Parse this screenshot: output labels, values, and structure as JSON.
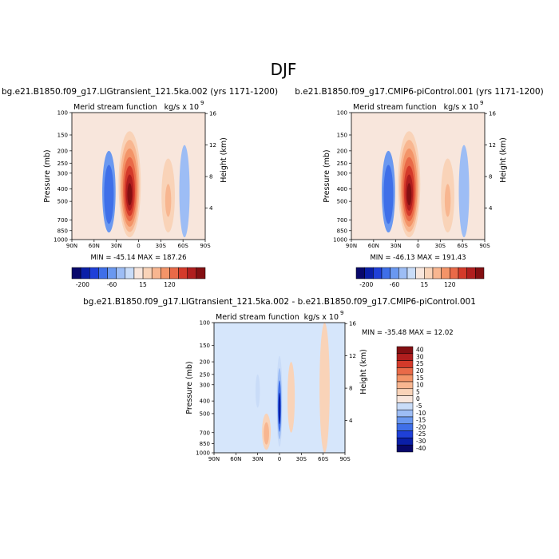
{
  "page": {
    "title": "DJF"
  },
  "colors": {
    "cmap_abs": [
      "#08086b",
      "#0a1fa8",
      "#1f40d8",
      "#3f6fe8",
      "#6a98f0",
      "#9dbdf5",
      "#c9dcf8",
      "#f8e6dc",
      "#f9d3b8",
      "#f8b690",
      "#f39468",
      "#e96a48",
      "#d43a2a",
      "#b01e1e",
      "#830f12"
    ],
    "cmap_diff": [
      "#08086b",
      "#0a1fa8",
      "#1f40d8",
      "#3f6fe8",
      "#6a98f0",
      "#9dbdf5",
      "#c9dcf8",
      "#f8e6dc",
      "#f9d3b8",
      "#f8b690",
      "#f39468",
      "#e96a48",
      "#d43a2a",
      "#b01e1e",
      "#830f12"
    ]
  },
  "chart_data": [
    {
      "type": "heatmap",
      "title": "bg.e21.B1850.f09_g17.LIGtransient_121.5ka.002 (yrs 1171-1200)",
      "subtitle_left": "Merid stream function",
      "subtitle_right": "kg/s x 10",
      "subtitle_exp": "9",
      "ylabel": "Pressure (mb)",
      "ylabel_right": "Height (km)",
      "x_ticks": [
        "90N",
        "60N",
        "30N",
        "0",
        "30S",
        "60S",
        "90S"
      ],
      "x_range": [
        90,
        -90
      ],
      "y_ticks": [
        "100",
        "150",
        "200",
        "250",
        "300",
        "400",
        "500",
        "700",
        "850",
        "1000"
      ],
      "y_tick_values": [
        100,
        150,
        200,
        250,
        300,
        400,
        500,
        700,
        850,
        1000
      ],
      "y_range": [
        100,
        1000
      ],
      "y_log": true,
      "height_ticks": [
        "16",
        "12",
        "8",
        "4"
      ],
      "height_values": [
        16,
        12,
        8,
        4
      ],
      "min_max": "MIN = -45.14   MAX = 187.26",
      "min": -45.14,
      "max": 187.26,
      "cells": [
        {
          "lat_center": 12,
          "lat_width": 30,
          "p_top": 140,
          "p_bot": 960,
          "value": 187.26,
          "levels": [
            15,
            35,
            60,
            90,
            120,
            150,
            175
          ]
        },
        {
          "lat_center": 40,
          "lat_width": 18,
          "p_top": 200,
          "p_bot": 880,
          "value": -45.14,
          "levels": [
            -15,
            -30,
            -45
          ]
        },
        {
          "lat_center": -40,
          "lat_width": 18,
          "p_top": 230,
          "p_bot": 880,
          "value": 40,
          "levels": [
            15,
            30,
            40
          ]
        },
        {
          "lat_center": -62,
          "lat_width": 14,
          "p_top": 180,
          "p_bot": 960,
          "value": -12,
          "levels": [
            -10
          ]
        },
        {
          "lat_center": 70,
          "lat_width": 26,
          "p_top": 200,
          "p_bot": 990,
          "value": 8,
          "levels": [
            5
          ]
        }
      ]
    },
    {
      "type": "heatmap",
      "title": "b.e21.B1850.f09_g17.CMIP6-piControl.001 (yrs 1171-1200)",
      "subtitle_left": "Merid stream function",
      "subtitle_right": "kg/s x 10",
      "subtitle_exp": "9",
      "ylabel": "Pressure (mb)",
      "ylabel_right": "Height (km)",
      "x_ticks": [
        "90N",
        "60N",
        "30N",
        "0",
        "30S",
        "60S",
        "90S"
      ],
      "x_range": [
        90,
        -90
      ],
      "y_ticks": [
        "100",
        "150",
        "200",
        "250",
        "300",
        "400",
        "500",
        "700",
        "850",
        "1000"
      ],
      "y_tick_values": [
        100,
        150,
        200,
        250,
        300,
        400,
        500,
        700,
        850,
        1000
      ],
      "y_range": [
        100,
        1000
      ],
      "y_log": true,
      "height_ticks": [
        "16",
        "12",
        "8",
        "4"
      ],
      "height_values": [
        16,
        12,
        8,
        4
      ],
      "min_max": "MIN = -46.13   MAX = 191.43",
      "min": -46.13,
      "max": 191.43,
      "cells": [
        {
          "lat_center": 12,
          "lat_width": 30,
          "p_top": 140,
          "p_bot": 960,
          "value": 191.43,
          "levels": [
            15,
            35,
            60,
            90,
            120,
            150,
            175
          ]
        },
        {
          "lat_center": 40,
          "lat_width": 18,
          "p_top": 200,
          "p_bot": 880,
          "value": -46.13,
          "levels": [
            -15,
            -30,
            -45
          ]
        },
        {
          "lat_center": -40,
          "lat_width": 18,
          "p_top": 230,
          "p_bot": 880,
          "value": 40,
          "levels": [
            15,
            30,
            40
          ]
        },
        {
          "lat_center": -62,
          "lat_width": 14,
          "p_top": 180,
          "p_bot": 960,
          "value": -12,
          "levels": [
            -10
          ]
        },
        {
          "lat_center": 70,
          "lat_width": 26,
          "p_top": 200,
          "p_bot": 990,
          "value": 8,
          "levels": [
            5
          ]
        }
      ]
    },
    {
      "type": "heatmap",
      "title": "bg.e21.B1850.f09_g17.LIGtransient_121.5ka.002 - b.e21.B1850.f09_g17.CMIP6-piControl.001",
      "subtitle_left": "Merid stream function",
      "subtitle_right": "kg/s x 10",
      "subtitle_exp": "9",
      "ylabel": "Pressure (mb)",
      "ylabel_right": "Height (km)",
      "x_ticks": [
        "90N",
        "60N",
        "30N",
        "0",
        "30S",
        "60S",
        "90S"
      ],
      "x_range": [
        90,
        -90
      ],
      "y_ticks": [
        "100",
        "150",
        "200",
        "250",
        "300",
        "400",
        "500",
        "700",
        "850",
        "1000"
      ],
      "y_tick_values": [
        100,
        150,
        200,
        250,
        300,
        400,
        500,
        700,
        850,
        1000
      ],
      "y_range": [
        100,
        1000
      ],
      "y_log": true,
      "height_ticks": [
        "16",
        "12",
        "8",
        "4"
      ],
      "height_values": [
        16,
        12,
        8,
        4
      ],
      "min_max": "MIN = -35.48   MAX =  12.02",
      "min": -35.48,
      "max": 12.02,
      "cells": [
        {
          "lat_center": 0,
          "lat_width": 8,
          "p_top": 180,
          "p_bot": 900,
          "value": -35.48,
          "levels": [
            -5,
            -10,
            -20,
            -30
          ]
        },
        {
          "lat_center": 18,
          "lat_width": 12,
          "p_top": 500,
          "p_bot": 950,
          "value": 12.02,
          "levels": [
            5,
            10
          ]
        },
        {
          "lat_center": -16,
          "lat_width": 10,
          "p_top": 200,
          "p_bot": 700,
          "value": 5,
          "levels": [
            5
          ]
        },
        {
          "lat_center": 30,
          "lat_width": 6,
          "p_top": 250,
          "p_bot": 450,
          "value": -8,
          "levels": [
            -5
          ]
        },
        {
          "lat_center": -62,
          "lat_width": 14,
          "p_top": 100,
          "p_bot": 1000,
          "value": 4,
          "levels": [
            5
          ]
        }
      ],
      "colorbar_labels": [
        "40",
        "30",
        "25",
        "20",
        "15",
        "10",
        "5",
        "0",
        "-5",
        "-10",
        "-15",
        "-20",
        "-25",
        "-30",
        "-40"
      ]
    }
  ],
  "colorbar_top": {
    "labels": [
      "-200",
      "-60",
      "15",
      "120"
    ],
    "bins": 15
  }
}
